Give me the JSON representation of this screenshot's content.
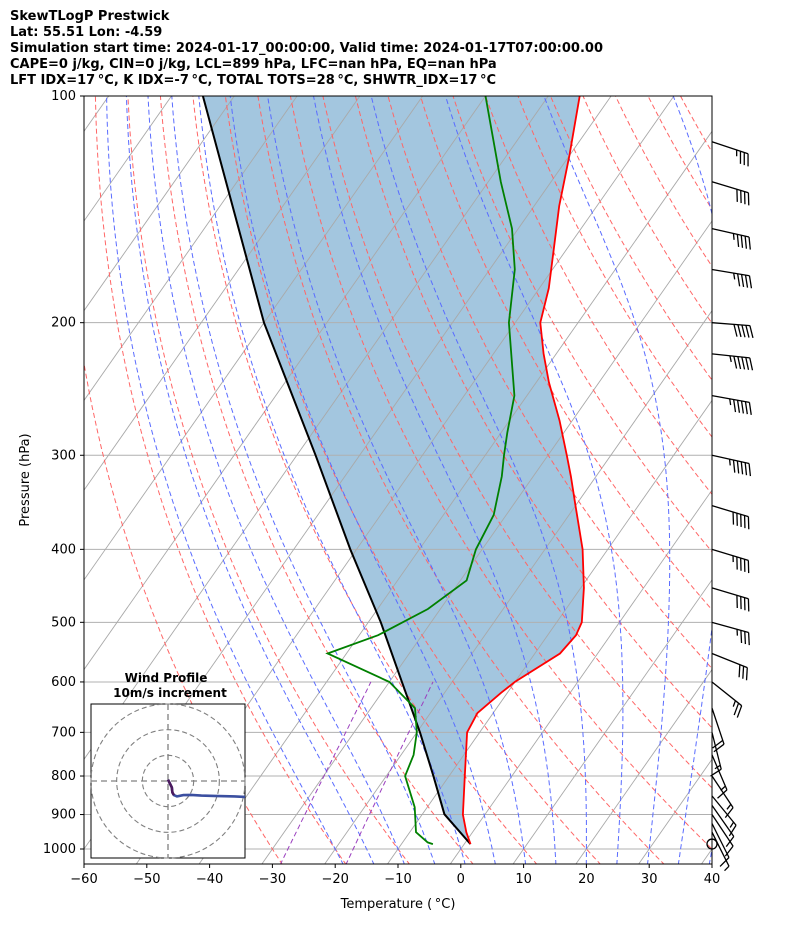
{
  "header": {
    "line1": "SkewTLogP Prestwick",
    "line2": "Lat: 55.51   Lon: -4.59",
    "line3": "Simulation start time: 2024-01-17_00:00:00, Valid time: 2024-01-17T07:00:00.00",
    "line4": "CAPE=0 j/kg, CIN=0 j/kg, LCL=899 hPa, LFC=nan hPa, EQ=nan hPa",
    "line5": "LFT IDX=17 °C, K IDX=-7 °C, TOTAL TOTS=28 °C, SHWTR_IDX=17 °C"
  },
  "colors": {
    "temperature": "#ff0000",
    "dewpoint": "#008000",
    "parcel": "#000000",
    "cape_fill": "#a3c6df",
    "dry_adiabat": "#ff6666",
    "moist_adiabat": "#5a6cff",
    "isotherm": "#a9a9a9",
    "mixing_ratio": "#9b3fbf",
    "hodograph_line": "#3b4fa0"
  },
  "chart_data": {
    "type": "skew-t log-p",
    "xlabel": "Temperature ( °C)",
    "ylabel": "Pressure (hPa)",
    "xlim": [
      -60,
      40
    ],
    "ylim": [
      1050,
      100
    ],
    "x_ticks": [
      "−60",
      "−50",
      "−40",
      "−30",
      "−20",
      "−10",
      "0",
      "10",
      "20",
      "30",
      "40"
    ],
    "y_ticks": [
      "1000",
      "900",
      "800",
      "700",
      "600",
      "500",
      "400",
      "300",
      "200",
      "100"
    ],
    "y_log_scale": true,
    "grid": true,
    "temperature_profile": [
      {
        "p": 985,
        "t": 1.0
      },
      {
        "p": 950,
        "t": -1.0
      },
      {
        "p": 900,
        "t": -3.5
      },
      {
        "p": 800,
        "t": -7.5
      },
      {
        "p": 700,
        "t": -12.0
      },
      {
        "p": 660,
        "t": -12.5
      },
      {
        "p": 620,
        "t": -11.0
      },
      {
        "p": 600,
        "t": -10.0
      },
      {
        "p": 550,
        "t": -6.0
      },
      {
        "p": 520,
        "t": -5.5
      },
      {
        "p": 500,
        "t": -6.0
      },
      {
        "p": 450,
        "t": -9.5
      },
      {
        "p": 400,
        "t": -14.0
      },
      {
        "p": 350,
        "t": -20.0
      },
      {
        "p": 320,
        "t": -24.0
      },
      {
        "p": 300,
        "t": -27.0
      },
      {
        "p": 270,
        "t": -32.0
      },
      {
        "p": 240,
        "t": -38.0
      },
      {
        "p": 220,
        "t": -42.0
      },
      {
        "p": 200,
        "t": -46.0
      },
      {
        "p": 180,
        "t": -48.5
      },
      {
        "p": 160,
        "t": -52.0
      },
      {
        "p": 140,
        "t": -56.0
      },
      {
        "p": 120,
        "t": -60.0
      },
      {
        "p": 100,
        "t": -65.0
      }
    ],
    "dewpoint_profile": [
      {
        "p": 985,
        "td": -5.0
      },
      {
        "p": 980,
        "td": -6.0
      },
      {
        "p": 950,
        "td": -9.0
      },
      {
        "p": 880,
        "td": -12.0
      },
      {
        "p": 800,
        "td": -17.0
      },
      {
        "p": 750,
        "td": -18.0
      },
      {
        "p": 700,
        "td": -20.0
      },
      {
        "p": 650,
        "td": -23.0
      },
      {
        "p": 600,
        "td": -30.0
      },
      {
        "p": 550,
        "td": -43.0
      },
      {
        "p": 520,
        "td": -37.0
      },
      {
        "p": 480,
        "td": -32.0
      },
      {
        "p": 440,
        "td": -29.0
      },
      {
        "p": 400,
        "td": -31.0
      },
      {
        "p": 360,
        "td": -32.0
      },
      {
        "p": 320,
        "td": -35.0
      },
      {
        "p": 300,
        "td": -37.0
      },
      {
        "p": 280,
        "td": -39.0
      },
      {
        "p": 250,
        "td": -42.0
      },
      {
        "p": 200,
        "td": -51.0
      },
      {
        "p": 170,
        "td": -56.0
      },
      {
        "p": 150,
        "td": -61.0
      },
      {
        "p": 130,
        "td": -68.0
      },
      {
        "p": 100,
        "td": -80.0
      }
    ],
    "parcel_profile": [
      {
        "p": 985,
        "t": 1.0
      },
      {
        "p": 899,
        "t": -6.5
      },
      {
        "p": 800,
        "t": -12.5
      },
      {
        "p": 700,
        "t": -19.5
      },
      {
        "p": 600,
        "t": -28.0
      },
      {
        "p": 500,
        "t": -38.0
      },
      {
        "p": 400,
        "t": -51.0
      },
      {
        "p": 300,
        "t": -67.0
      },
      {
        "p": 200,
        "t": -90.0
      },
      {
        "p": 100,
        "t": -125.0
      }
    ],
    "wind_barbs": [
      {
        "p": 985,
        "u": 0.0,
        "v": 0.0
      },
      {
        "p": 950,
        "u": -1.5,
        "v": 3.0
      },
      {
        "p": 925,
        "u": -2.0,
        "v": 4.0
      },
      {
        "p": 900,
        "u": -3.0,
        "v": 4.5
      },
      {
        "p": 875,
        "u": -3.5,
        "v": 5.0
      },
      {
        "p": 850,
        "u": -4.5,
        "v": 5.5
      },
      {
        "p": 800,
        "u": -4.0,
        "v": 6.0
      },
      {
        "p": 750,
        "u": -3.0,
        "v": 7.0
      },
      {
        "p": 700,
        "u": -2.0,
        "v": 8.0
      },
      {
        "p": 650,
        "u": -3.0,
        "v": 9.0
      },
      {
        "p": 600,
        "u": -10.0,
        "v": 8.0
      },
      {
        "p": 550,
        "u": -15.0,
        "v": 6.0
      },
      {
        "p": 500,
        "u": -18.0,
        "v": 5.0
      },
      {
        "p": 450,
        "u": -20.0,
        "v": 6.0
      },
      {
        "p": 400,
        "u": -23.0,
        "v": 7.0
      },
      {
        "p": 350,
        "u": -25.0,
        "v": 7.5
      },
      {
        "p": 300,
        "u": -27.0,
        "v": 6.0
      },
      {
        "p": 250,
        "u": -28.0,
        "v": 5.0
      },
      {
        "p": 220,
        "u": -28.0,
        "v": 3.0
      },
      {
        "p": 200,
        "u": -26.0,
        "v": 2.0
      },
      {
        "p": 170,
        "u": -24.0,
        "v": 4.0
      },
      {
        "p": 150,
        "u": -22.0,
        "v": 5.0
      },
      {
        "p": 130,
        "u": -20.0,
        "v": 6.0
      },
      {
        "p": 115,
        "u": -18.0,
        "v": 6.0
      }
    ],
    "hodograph": {
      "title": "Wind Profile",
      "subtitle": "10m/s increment",
      "ring_count": 3,
      "points": [
        {
          "u": 0.0,
          "v": 0.5
        },
        {
          "u": 0.5,
          "v": -0.5
        },
        {
          "u": 1.0,
          "v": -1.5
        },
        {
          "u": 1.5,
          "v": -2.5
        },
        {
          "u": 1.7,
          "v": -4.5
        },
        {
          "u": 2.3,
          "v": -5.5
        },
        {
          "u": 3.5,
          "v": -6.0
        },
        {
          "u": 6.0,
          "v": -5.5
        },
        {
          "u": 9.0,
          "v": -5.4
        },
        {
          "u": 13.0,
          "v": -5.7
        },
        {
          "u": 18.0,
          "v": -5.8
        },
        {
          "u": 26.0,
          "v": -6.0
        },
        {
          "u": 30.0,
          "v": -6.2
        }
      ]
    }
  }
}
